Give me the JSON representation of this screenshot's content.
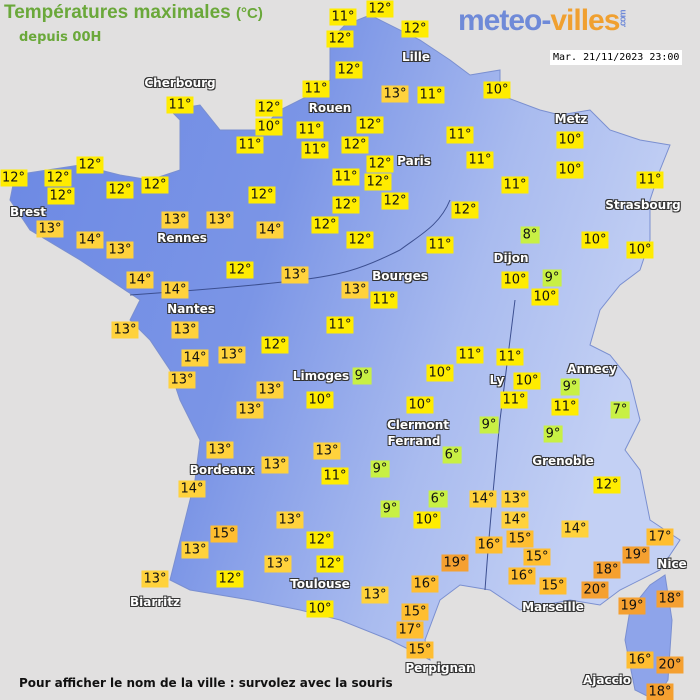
{
  "header": {
    "title": "Températures maximales",
    "unit": "(°C)",
    "subtitle": "depuis 00H",
    "logo_part1": "meteo-",
    "logo_part2": "villes",
    "logo_suffix": ".com",
    "datetime": "Mar. 21/11/2023 23:00"
  },
  "footer": {
    "hint": "Pour afficher le nom de la ville : survolez avec la souris"
  },
  "colors": {
    "sea": "#e1e0e0",
    "land_west": "#6b88e4",
    "land_east": "#b7c7f2",
    "temp_cold": "#c8f044",
    "temp_mild": "#ffec00",
    "temp_warm": "#ffd23c",
    "temp_hot": "#ffbe30",
    "temp_very_hot": "#f5a030"
  },
  "cities": [
    "Cherbourg",
    "Rouen",
    "Lille",
    "Paris",
    "Metz",
    "Strasbourg",
    "Brest",
    "Rennes",
    "Nantes",
    "Dijon",
    "Bourges",
    "Limoges",
    "Annecy",
    "Ly",
    "Clermont",
    "Ferrand",
    "Grenoble",
    "Bordeaux",
    "Nice",
    "Toulouse",
    "Marseille",
    "Biarritz",
    "Perpignan",
    "Ajaccio"
  ],
  "temperatures": [
    "11°",
    "12°",
    "12°",
    "12°",
    "12°",
    "11°",
    "13°",
    "11°",
    "10°",
    "11°",
    "12°",
    "10°",
    "11°",
    "11°",
    "11°",
    "12°",
    "12°",
    "11°",
    "12°",
    "11°",
    "11°",
    "12°",
    "12°",
    "10°",
    "10°",
    "11°",
    "11°",
    "12°",
    "12°",
    "12°",
    "12°",
    "12°",
    "12°",
    "12°",
    "12°",
    "12°",
    "12°",
    "13°",
    "13°",
    "13°",
    "14°",
    "12°",
    "14°",
    "13°",
    "14°",
    "14°",
    "12°",
    "13°",
    "11°",
    "8°",
    "10°",
    "10°",
    "13°",
    "11°",
    "10°",
    "9°",
    "10°",
    "13°",
    "13°",
    "11°",
    "12°",
    "14°",
    "13°",
    "13°",
    "13°",
    "13°",
    "10°",
    "9°",
    "10°",
    "11°",
    "11°",
    "10°",
    "11°",
    "9°",
    "11°",
    "7°",
    "10°",
    "9°",
    "9°",
    "6°",
    "12°",
    "13°",
    "13°",
    "13°",
    "11°",
    "9°",
    "14°",
    "6°",
    "9°",
    "10°",
    "14°",
    "13°",
    "14°",
    "14°",
    "13°",
    "15°",
    "13°",
    "12°",
    "12°",
    "13°",
    "12°",
    "13°",
    "10°",
    "13°",
    "16°",
    "15°",
    "19°",
    "16°",
    "15°",
    "17°",
    "15°",
    "15°",
    "16°",
    "15°",
    "18°",
    "20°",
    "17°",
    "19°",
    "19°",
    "18°",
    "16°",
    "20°",
    "18°"
  ]
}
